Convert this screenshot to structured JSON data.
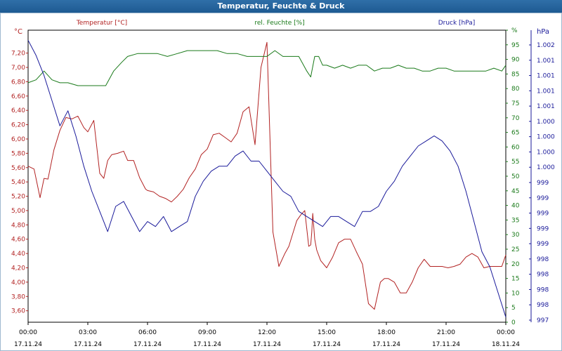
{
  "window": {
    "title": "Temperatur, Feuchte & Druck"
  },
  "chart_data": {
    "type": "line",
    "title": "Temperatur, Feuchte & Druck",
    "x_ticks": [
      {
        "time": "00:00",
        "date": "17.11.24"
      },
      {
        "time": "03:00",
        "date": "17.11.24"
      },
      {
        "time": "06:00",
        "date": "17.11.24"
      },
      {
        "time": "09:00",
        "date": "17.11.24"
      },
      {
        "time": "12:00",
        "date": "17.11.24"
      },
      {
        "time": "15:00",
        "date": "17.11.24"
      },
      {
        "time": "18:00",
        "date": "17.11.24"
      },
      {
        "time": "21:00",
        "date": "17.11.24"
      },
      {
        "time": "00:00",
        "date": "18.11.24"
      }
    ],
    "xlim_hours": [
      0,
      24
    ],
    "grid": true,
    "axes": {
      "temperature": {
        "unit": "°C",
        "label": "Temperatur [°C]",
        "color": "#b22222",
        "range": [
          3.44,
          7.52
        ],
        "ticks": [
          "3,60",
          "3,80",
          "4,00",
          "4,20",
          "4,40",
          "4,60",
          "4,80",
          "5,00",
          "5,20",
          "5,40",
          "5,60",
          "5,80",
          "6,00",
          "6,20",
          "6,40",
          "6,60",
          "6,80",
          "7,00",
          "7,20"
        ]
      },
      "humidity": {
        "unit": "%",
        "label": "rel. Feuchte [%]",
        "color": "#1a7a1a",
        "range": [
          0,
          100
        ],
        "ticks": [
          "0",
          "5",
          "10",
          "15",
          "20",
          "25",
          "30",
          "35",
          "40",
          "45",
          "50",
          "55",
          "60",
          "65",
          "70",
          "75",
          "80",
          "85",
          "90",
          "95",
          "%"
        ]
      },
      "pressure": {
        "unit": "hPa",
        "label": "Druck [hPa]",
        "color": "#1a1a9a",
        "ticks": [
          "997",
          "998",
          "998",
          "998",
          "998",
          "999",
          "999",
          "999",
          "999",
          "999",
          "1.000",
          "1.000",
          "1.000",
          "1.000",
          "1.001",
          "1.001",
          "1.001",
          "1.001",
          "1.002"
        ]
      }
    },
    "series": [
      {
        "name": "Temperatur [°C]",
        "axis": "temperature",
        "color": "#b22222",
        "x": [
          0,
          0.3,
          0.6,
          0.8,
          1,
          1.3,
          1.6,
          1.9,
          2.2,
          2.5,
          2.8,
          3,
          3.3,
          3.6,
          3.8,
          4,
          4.2,
          4.5,
          4.8,
          5,
          5.3,
          5.6,
          5.9,
          6,
          6.3,
          6.6,
          6.9,
          7.2,
          7.5,
          7.8,
          8.1,
          8.4,
          8.7,
          9,
          9.3,
          9.6,
          9.9,
          10.2,
          10.5,
          10.8,
          11.1,
          11.4,
          11.7,
          12,
          12.3,
          12.6,
          12.9,
          13.1,
          13.3,
          13.5,
          13.7,
          13.9,
          14.1,
          14.2,
          14.25,
          14.3,
          14.4,
          14.5,
          14.7,
          15,
          15.3,
          15.6,
          15.9,
          16.2,
          16.5,
          16.8,
          17.1,
          17.4,
          17.7,
          17.9,
          18.1,
          18.4,
          18.7,
          19,
          19.3,
          19.6,
          19.9,
          20.2,
          20.5,
          20.8,
          21.1,
          21.4,
          21.7,
          22,
          22.3,
          22.6,
          22.9,
          23.2,
          23.5,
          23.8,
          24
        ],
        "values": [
          5.62,
          5.58,
          5.18,
          5.45,
          5.44,
          5.85,
          6.12,
          6.3,
          6.28,
          6.32,
          6.16,
          6.1,
          6.26,
          5.52,
          5.45,
          5.7,
          5.78,
          5.8,
          5.83,
          5.7,
          5.7,
          5.46,
          5.3,
          5.28,
          5.26,
          5.2,
          5.17,
          5.12,
          5.2,
          5.3,
          5.46,
          5.58,
          5.78,
          5.86,
          6.06,
          6.08,
          6.02,
          5.96,
          6.08,
          6.38,
          6.45,
          5.92,
          7.0,
          7.35,
          4.7,
          4.22,
          4.4,
          4.5,
          4.68,
          4.86,
          4.94,
          5.0,
          4.5,
          4.52,
          4.7,
          4.96,
          4.6,
          4.45,
          4.3,
          4.2,
          4.35,
          4.55,
          4.6,
          4.6,
          4.42,
          4.25,
          3.7,
          3.62,
          4.0,
          4.05,
          4.05,
          4.0,
          3.85,
          3.85,
          4.0,
          4.2,
          4.32,
          4.22,
          4.22,
          4.22,
          4.2,
          4.22,
          4.25,
          4.35,
          4.4,
          4.35,
          4.2,
          4.22,
          4.22,
          4.22,
          4.38
        ]
      },
      {
        "name": "rel. Feuchte [%]",
        "axis": "humidity",
        "color": "#1a7a1a",
        "x": [
          0,
          0.4,
          0.8,
          1.2,
          1.6,
          2,
          2.5,
          3,
          3.5,
          3.9,
          4.3,
          4.7,
          5,
          5.5,
          6,
          6.5,
          7,
          7.5,
          8,
          8.5,
          9,
          9.5,
          10,
          10.5,
          11,
          11.5,
          12,
          12.4,
          12.8,
          13.2,
          13.6,
          14,
          14.2,
          14.4,
          14.6,
          14.8,
          15,
          15.4,
          15.8,
          16.2,
          16.6,
          17,
          17.4,
          17.8,
          18.2,
          18.6,
          19,
          19.4,
          19.8,
          20.2,
          20.6,
          21,
          21.4,
          21.8,
          22.2,
          22.6,
          23,
          23.4,
          23.8,
          24
        ],
        "values": [
          82,
          83,
          86,
          83,
          82,
          82,
          81,
          81,
          81,
          81,
          86,
          89,
          91,
          92,
          92,
          92,
          91,
          92,
          93,
          93,
          93,
          93,
          92,
          92,
          91,
          91,
          91,
          93,
          91,
          91,
          91,
          86,
          84,
          91,
          91,
          88,
          88,
          87,
          88,
          87,
          88,
          88,
          86,
          87,
          87,
          88,
          87,
          87,
          86,
          86,
          87,
          87,
          86,
          86,
          86,
          86,
          86,
          87,
          86,
          88
        ]
      },
      {
        "name": "Druck [hPa]",
        "axis": "pressure",
        "color": "#1a1a9a",
        "pressure_range": [
          996.4,
          1002.2
        ],
        "x": [
          0,
          0.4,
          0.8,
          1.2,
          1.6,
          2,
          2.4,
          2.8,
          3.2,
          3.6,
          4,
          4.4,
          4.8,
          5.2,
          5.6,
          6,
          6.4,
          6.8,
          7.2,
          7.6,
          8,
          8.4,
          8.8,
          9.2,
          9.6,
          10,
          10.4,
          10.8,
          11.2,
          11.6,
          12,
          12.4,
          12.8,
          13.2,
          13.6,
          14,
          14.4,
          14.8,
          15.2,
          15.6,
          16,
          16.4,
          16.8,
          17.2,
          17.6,
          18,
          18.4,
          18.8,
          19.2,
          19.6,
          20,
          20.4,
          20.8,
          21.2,
          21.6,
          22,
          22.4,
          22.8,
          23.2,
          23.6,
          24
        ],
        "values": [
          1002.0,
          1001.7,
          1001.3,
          1000.8,
          1000.3,
          1000.6,
          1000.1,
          999.5,
          999.0,
          998.6,
          998.2,
          998.7,
          998.8,
          998.5,
          998.2,
          998.4,
          998.3,
          998.5,
          998.2,
          998.3,
          998.4,
          998.9,
          999.2,
          999.4,
          999.5,
          999.5,
          999.7,
          999.8,
          999.6,
          999.6,
          999.4,
          999.2,
          999.0,
          998.9,
          998.6,
          998.5,
          998.4,
          998.3,
          998.5,
          998.5,
          998.4,
          998.3,
          998.6,
          998.6,
          998.7,
          999.0,
          999.2,
          999.5,
          999.7,
          999.9,
          1000.0,
          1000.1,
          1000.0,
          999.8,
          999.5,
          999.0,
          998.4,
          997.8,
          997.5,
          997.0,
          996.5
        ]
      }
    ]
  }
}
